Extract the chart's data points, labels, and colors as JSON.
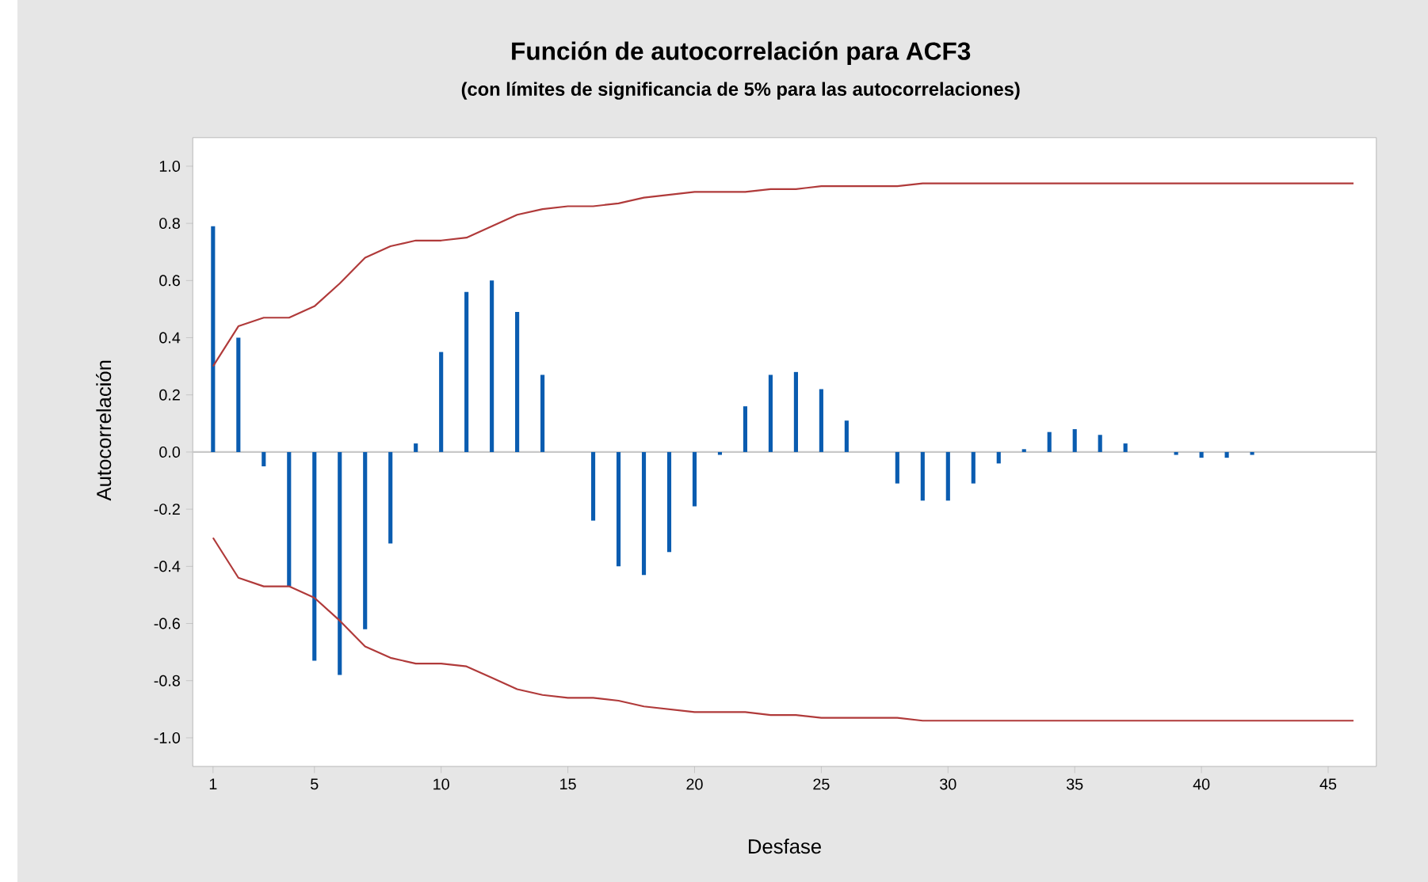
{
  "chart_data": {
    "type": "bar",
    "title": "Función de autocorrelación para ACF3",
    "subtitle": "(con límites de significancia de 5% para las autocorrelaciones)",
    "xlabel": "Desfase",
    "ylabel": "Autocorrelación",
    "xlim": [
      0.2,
      46.9
    ],
    "xticks": [
      1,
      5,
      10,
      15,
      20,
      25,
      30,
      35,
      40,
      45
    ],
    "ylim": [
      -1.1,
      1.1
    ],
    "yticks": [
      {
        "value": -1.0,
        "label": "-1.0"
      },
      {
        "value": -0.8,
        "label": "-0.8"
      },
      {
        "value": -0.6,
        "label": "-0.6"
      },
      {
        "value": -0.4,
        "label": "-0.4"
      },
      {
        "value": -0.2,
        "label": "-0.2"
      },
      {
        "value": 0.0,
        "label": "0.0"
      },
      {
        "value": 0.2,
        "label": "0.2"
      },
      {
        "value": 0.4,
        "label": "0.4"
      },
      {
        "value": 0.6,
        "label": "0.6"
      },
      {
        "value": 0.8,
        "label": "0.8"
      },
      {
        "value": 1.0,
        "label": "1.0"
      }
    ],
    "ref_lines": [
      {
        "axis": "y",
        "value": 0,
        "color": "#c8c8c8"
      }
    ],
    "series": [
      {
        "color": "#0a5cb0",
        "x": [
          1,
          2,
          3,
          4,
          5,
          6,
          7,
          8,
          9,
          10,
          11,
          12,
          13,
          14,
          15,
          16,
          17,
          18,
          19,
          20,
          21,
          22,
          23,
          24,
          25,
          26,
          27,
          28,
          29,
          30,
          31,
          32,
          33,
          34,
          35,
          36,
          37,
          38,
          39,
          40,
          41,
          42,
          43,
          44,
          45,
          46
        ],
        "values": [
          0.79,
          0.4,
          -0.05,
          -0.47,
          -0.73,
          -0.78,
          -0.62,
          -0.32,
          0.03,
          0.35,
          0.56,
          0.6,
          0.49,
          0.27,
          0.0,
          -0.24,
          -0.4,
          -0.43,
          -0.35,
          -0.19,
          -0.01,
          0.16,
          0.27,
          0.28,
          0.22,
          0.11,
          0.0,
          -0.11,
          -0.17,
          -0.17,
          -0.11,
          -0.04,
          0.01,
          0.07,
          0.08,
          0.06,
          0.03,
          0.0,
          -0.01,
          -0.02,
          -0.02,
          -0.01,
          0.0,
          0.0,
          0.0,
          0.0
        ]
      },
      {
        "type": "line",
        "color": "#b03a3a",
        "x": [
          1,
          2,
          3,
          4,
          5,
          6,
          7,
          8,
          9,
          10,
          11,
          12,
          13,
          14,
          15,
          16,
          17,
          18,
          19,
          20,
          21,
          22,
          23,
          24,
          25,
          26,
          27,
          28,
          29,
          30,
          35,
          40,
          46
        ],
        "values": [
          0.3,
          0.44,
          0.47,
          0.47,
          0.51,
          0.59,
          0.68,
          0.72,
          0.74,
          0.74,
          0.75,
          0.79,
          0.83,
          0.85,
          0.86,
          0.86,
          0.87,
          0.89,
          0.9,
          0.91,
          0.91,
          0.91,
          0.92,
          0.92,
          0.93,
          0.93,
          0.93,
          0.93,
          0.94,
          0.94,
          0.94,
          0.94,
          0.94
        ]
      },
      {
        "type": "line",
        "color": "#b03a3a",
        "x": [
          1,
          2,
          3,
          4,
          5,
          6,
          7,
          8,
          9,
          10,
          11,
          12,
          13,
          14,
          15,
          16,
          17,
          18,
          19,
          20,
          21,
          22,
          23,
          24,
          25,
          26,
          27,
          28,
          29,
          30,
          35,
          40,
          46
        ],
        "values": [
          -0.3,
          -0.44,
          -0.47,
          -0.47,
          -0.51,
          -0.59,
          -0.68,
          -0.72,
          -0.74,
          -0.74,
          -0.75,
          -0.79,
          -0.83,
          -0.85,
          -0.86,
          -0.86,
          -0.87,
          -0.89,
          -0.9,
          -0.91,
          -0.91,
          -0.91,
          -0.92,
          -0.92,
          -0.93,
          -0.93,
          -0.93,
          -0.93,
          -0.94,
          -0.94,
          -0.94,
          -0.94,
          -0.94
        ]
      }
    ]
  }
}
